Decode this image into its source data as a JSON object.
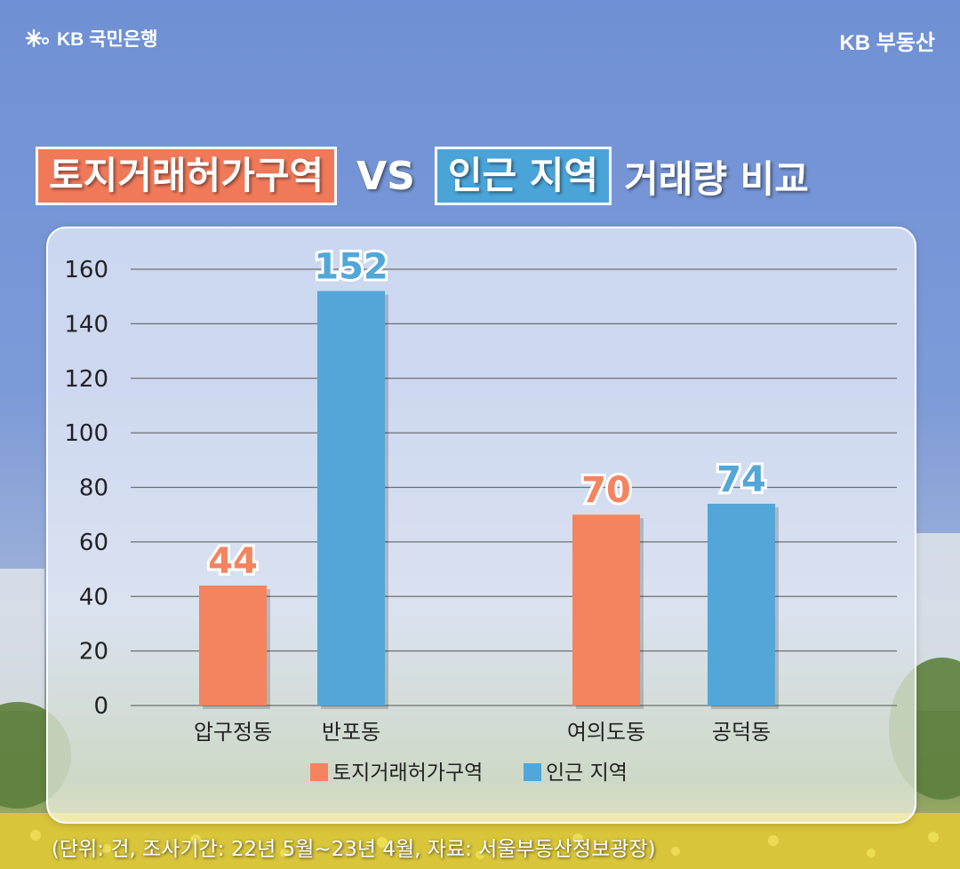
{
  "header": {
    "bank_brand": "KB 국민은행",
    "realestate_brand": "KB 부동산"
  },
  "title": {
    "tag1": "토지거래허가구역",
    "vs": "VS",
    "tag2": "인근 지역",
    "suffix": "거래량 비교"
  },
  "colors": {
    "permit_zone": "#f4845f",
    "nearby": "#52a7d8",
    "accent_orange": "#f0795a",
    "accent_blue": "#4aa4d8"
  },
  "chart_data": {
    "type": "bar",
    "categories": [
      "압구정동",
      "반포동",
      "여의도동",
      "공덕동"
    ],
    "values": [
      44,
      152,
      70,
      74
    ],
    "series_of_bar": [
      "토지거래허가구역",
      "인근 지역",
      "토지거래허가구역",
      "인근 지역"
    ],
    "legend": [
      {
        "name": "토지거래허가구역",
        "color": "#f4845f"
      },
      {
        "name": "인근 지역",
        "color": "#52a7d8"
      }
    ],
    "ylim": [
      0,
      160
    ],
    "yticks": [
      "0",
      "20",
      "40",
      "60",
      "80",
      "100",
      "120",
      "140",
      "160"
    ],
    "grid": true,
    "legend_position": "bottom-center"
  },
  "footnote": "(단위: 건, 조사기간: 22년 5월~23년 4월, 자료: 서울부동산정보광장)"
}
